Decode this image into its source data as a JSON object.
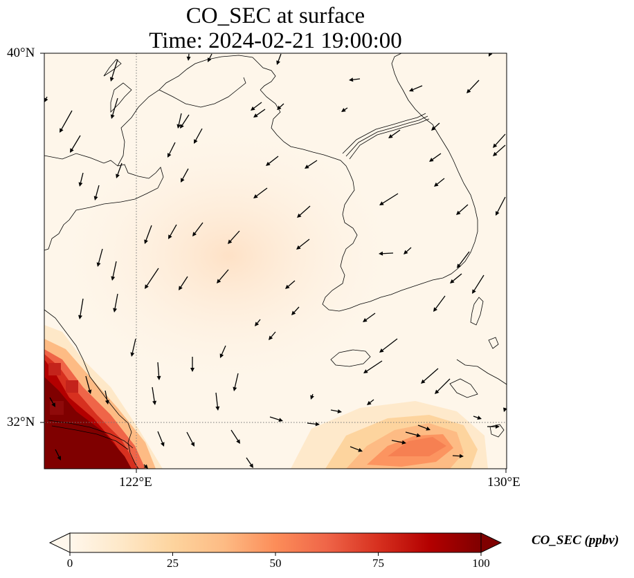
{
  "title_line1": "CO_SEC at surface",
  "title_line2": "Time: 2024-02-21 19:00:00",
  "map": {
    "extent": {
      "lon_min": 118,
      "lon_max": 130,
      "lat_min": 31,
      "lat_max": 40
    },
    "gridlines": {
      "lon": [
        122
      ],
      "lat": [
        32
      ],
      "style": "dotted gray"
    },
    "lat_ticks": [
      {
        "label": "40°N"
      },
      {
        "label": "32°N"
      }
    ],
    "lon_ticks": [
      {
        "label": "122°E"
      },
      {
        "label": "130°E"
      }
    ],
    "field_description": "CO_SEC concentration field (ppbv) with surface wind vectors",
    "high_concentration_regions": [
      {
        "name": "Yangtze River Delta / Shanghai",
        "value_ppbv": ">100"
      },
      {
        "name": "East China Sea south of Korea",
        "value_ppbv": "30-55"
      }
    ],
    "wind": "predominantly northerly / northwesterly winds; westerly to easterly flow in the southeast"
  },
  "colorbar": {
    "label": "CO_SEC (ppbv)",
    "colormap": "OrRd",
    "min": 0,
    "max": 100,
    "extend": "both",
    "ticks": [
      "0",
      "25",
      "50",
      "75",
      "100"
    ],
    "colors": [
      "#fff7ec",
      "#fee8c8",
      "#fdd49e",
      "#fdbb84",
      "#fc8d59",
      "#ef6548",
      "#d7301f",
      "#b30000",
      "#7f0000"
    ]
  }
}
